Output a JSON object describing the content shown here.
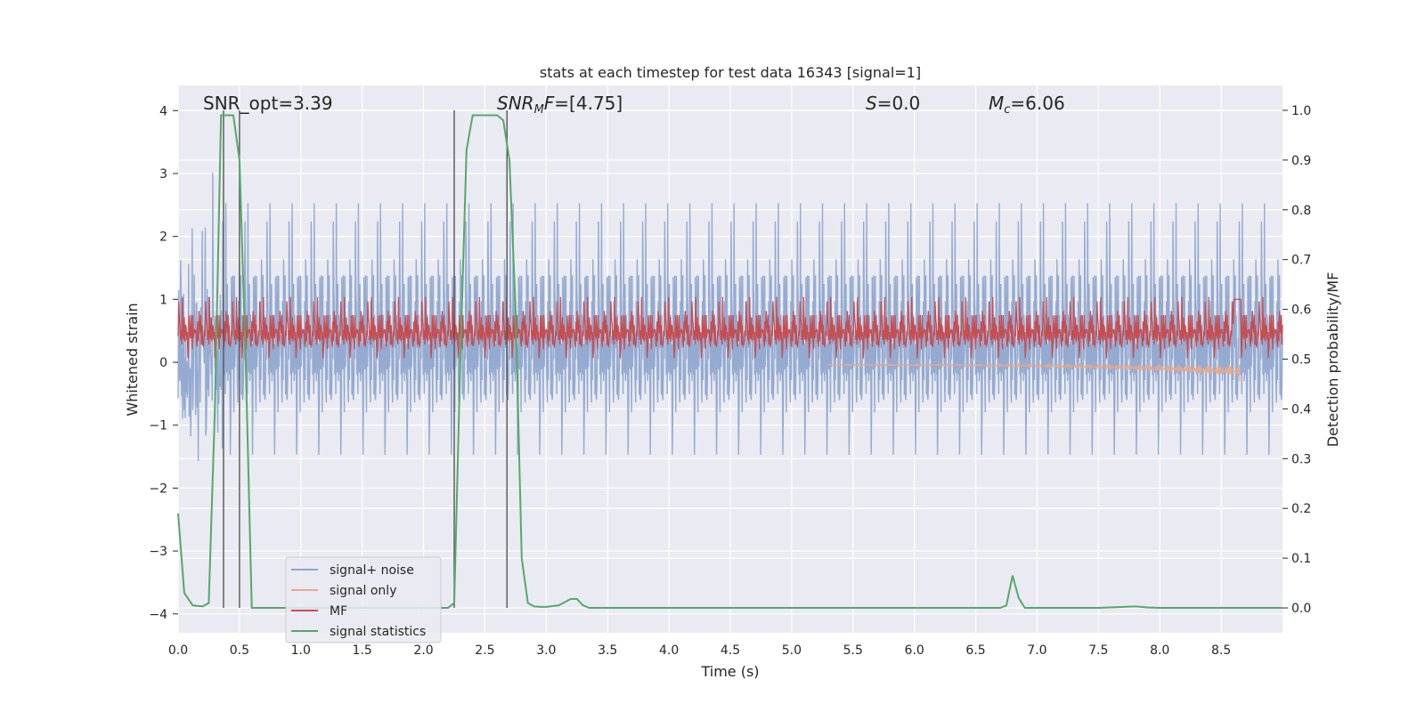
{
  "chart_data": {
    "type": "line",
    "title": "stats at each timestep for test data 16343 [signal=1]",
    "xlabel": "Time (s)",
    "ylabel": "Whitened strain",
    "ylabel_right": "Detection probability/MF",
    "xlim": [
      0.0,
      9.0
    ],
    "ylim": [
      -4.3,
      4.4
    ],
    "ylim_right": [
      -0.05,
      1.05
    ],
    "x_ticks": [
      "0.0",
      "0.5",
      "1.0",
      "1.5",
      "2.0",
      "2.5",
      "3.0",
      "3.5",
      "4.0",
      "4.5",
      "5.0",
      "5.5",
      "6.0",
      "6.5",
      "7.0",
      "7.5",
      "8.0",
      "8.5"
    ],
    "y_ticks": [
      "4",
      "3",
      "2",
      "1",
      "0",
      "−1",
      "−2",
      "−3",
      "−4"
    ],
    "y_right_ticks": [
      "1.0",
      "0.9",
      "0.8",
      "0.7",
      "0.6",
      "0.5",
      "0.4",
      "0.3",
      "0.2",
      "0.1",
      "0.0"
    ],
    "grid": true,
    "legend_position": "lower-left",
    "annotations": [
      {
        "text": "SNR_opt=3.39",
        "italic": false
      },
      {
        "text": "SNR",
        "sub": "M",
        "tail": "F=[4.75]",
        "italic": true
      },
      {
        "text": "S",
        "tail": "=0.0",
        "italic": true
      },
      {
        "text": "M",
        "sub": "c",
        "tail": "=6.06",
        "italic": true
      }
    ],
    "vertical_markers_s": [
      0.37,
      0.5,
      2.25,
      2.68
    ],
    "series": [
      {
        "name": "signal+ noise",
        "color": "#8fa6cf",
        "kind": "noise",
        "amplitude_band": [
          -1.5,
          1.6
        ],
        "peak_range": [
          -3.3,
          3.5
        ]
      },
      {
        "name": "signal only",
        "color": "#e8a88b",
        "kind": "chirp",
        "end_time_s": 8.65,
        "end_value": -0.3
      },
      {
        "name": "MF",
        "color": "#c44e52",
        "kind": "noise",
        "amplitude_band": [
          0.1,
          0.8
        ]
      },
      {
        "name": "signal statistics",
        "color": "#55a868",
        "kind": "probability",
        "x": [
          0.0,
          0.05,
          0.12,
          0.2,
          0.25,
          0.3,
          0.35,
          0.4,
          0.45,
          0.5,
          0.55,
          0.6,
          0.65,
          0.7,
          1.0,
          1.5,
          2.0,
          2.2,
          2.25,
          2.3,
          2.35,
          2.4,
          2.5,
          2.6,
          2.65,
          2.7,
          2.75,
          2.8,
          2.85,
          2.9,
          2.95,
          3.0,
          3.1,
          3.2,
          3.25,
          3.3,
          3.35,
          3.4,
          3.5,
          4.0,
          5.0,
          6.0,
          6.7,
          6.75,
          6.8,
          6.85,
          6.9,
          6.95,
          7.0,
          7.5,
          7.8,
          7.9,
          8.0,
          8.5,
          9.0
        ],
        "y": [
          0.19,
          0.03,
          0.005,
          0.003,
          0.01,
          0.4,
          0.99,
          0.99,
          0.99,
          0.9,
          0.5,
          0.0,
          0.0,
          0.0,
          0.0,
          0.0,
          0.0,
          0.0,
          0.01,
          0.5,
          0.92,
          0.99,
          0.99,
          0.99,
          0.98,
          0.9,
          0.6,
          0.1,
          0.01,
          0.003,
          0.002,
          0.002,
          0.005,
          0.018,
          0.018,
          0.005,
          0.0,
          0.0,
          0.0,
          0.0,
          0.0,
          0.0,
          0.0,
          0.005,
          0.065,
          0.02,
          0.0,
          0.0,
          0.0,
          0.0,
          0.003,
          0.001,
          0.0,
          0.0,
          0.0
        ]
      }
    ]
  }
}
